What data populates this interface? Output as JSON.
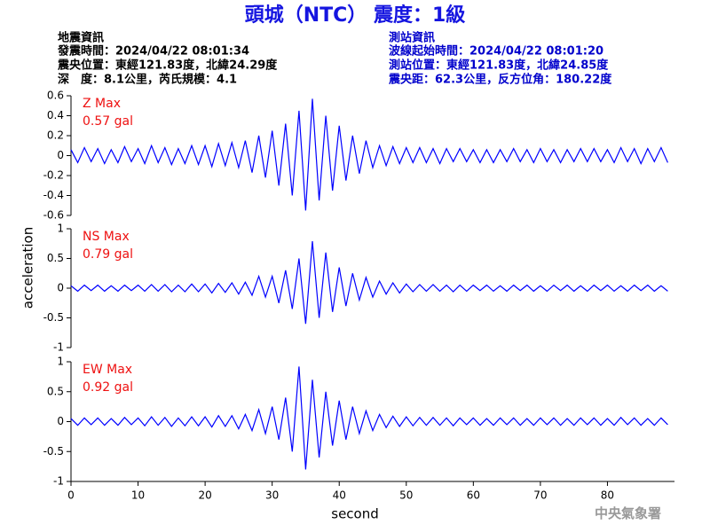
{
  "header": {
    "title": "頭城（NTC） 震度：1級",
    "left": [
      "地震資訊",
      "發震時間：2024/04/22 08:01:34",
      "震央位置：東經121.83度，北緯24.29度",
      "深　度：8.1公里，芮氏規模：4.1"
    ],
    "right": [
      "測站資訊",
      "波線起始時間：2024/04/22 08:01:20",
      "測站位置：東經121.83度，北緯24.85度",
      "震央距：62.3公里，反方位角：180.22度"
    ],
    "ylabel": "acceleration",
    "xlabel": "second",
    "footer": "中央氣象署"
  },
  "chart_data": [
    {
      "type": "line",
      "annotation": [
        "Z Max",
        "0.57 gal"
      ],
      "color": "#0000ff",
      "xlim": [
        0,
        90
      ],
      "ylim": [
        -0.6,
        0.6
      ],
      "yticks": [
        -0.6,
        -0.4,
        -0.2,
        0,
        0.2,
        0.4,
        0.6
      ],
      "x": [
        0,
        1,
        2,
        3,
        4,
        5,
        6,
        7,
        8,
        9,
        10,
        11,
        12,
        13,
        14,
        15,
        16,
        17,
        18,
        19,
        20,
        21,
        22,
        23,
        24,
        25,
        26,
        27,
        28,
        29,
        30,
        31,
        32,
        33,
        34,
        35,
        36,
        37,
        38,
        39,
        40,
        41,
        42,
        43,
        44,
        45,
        46,
        47,
        48,
        49,
        50,
        51,
        52,
        53,
        54,
        55,
        56,
        57,
        58,
        59,
        60,
        61,
        62,
        63,
        64,
        65,
        66,
        67,
        68,
        69,
        70,
        71,
        72,
        73,
        74,
        75,
        76,
        77,
        78,
        79,
        80,
        81,
        82,
        83,
        84,
        85,
        86,
        87,
        88,
        89
      ],
      "values": [
        0.06,
        -0.07,
        0.08,
        -0.06,
        0.07,
        -0.08,
        0.06,
        -0.07,
        0.09,
        -0.06,
        0.07,
        -0.08,
        0.1,
        -0.07,
        0.08,
        -0.09,
        0.07,
        -0.08,
        0.1,
        -0.09,
        0.1,
        -0.11,
        0.12,
        -0.1,
        0.13,
        -0.12,
        0.15,
        -0.17,
        0.2,
        -0.22,
        0.25,
        -0.3,
        0.32,
        -0.4,
        0.45,
        -0.55,
        0.57,
        -0.45,
        0.4,
        -0.35,
        0.3,
        -0.25,
        0.2,
        -0.18,
        0.15,
        -0.12,
        0.1,
        -0.1,
        0.09,
        -0.08,
        0.08,
        -0.07,
        0.08,
        -0.07,
        0.07,
        -0.08,
        0.07,
        -0.06,
        0.07,
        -0.06,
        0.06,
        -0.07,
        0.06,
        -0.07,
        0.06,
        -0.06,
        0.07,
        -0.06,
        0.06,
        -0.07,
        0.07,
        -0.06,
        0.06,
        -0.07,
        0.06,
        -0.06,
        0.07,
        -0.06,
        0.07,
        -0.06,
        0.06,
        -0.07,
        0.08,
        -0.06,
        0.07,
        -0.08,
        0.07,
        -0.06,
        0.08,
        -0.07
      ]
    },
    {
      "type": "line",
      "annotation": [
        "NS Max",
        "0.79 gal"
      ],
      "color": "#0000ff",
      "xlim": [
        0,
        90
      ],
      "ylim": [
        -1,
        1
      ],
      "yticks": [
        -1,
        -0.5,
        0,
        0.5,
        1
      ],
      "x": [
        0,
        1,
        2,
        3,
        4,
        5,
        6,
        7,
        8,
        9,
        10,
        11,
        12,
        13,
        14,
        15,
        16,
        17,
        18,
        19,
        20,
        21,
        22,
        23,
        24,
        25,
        26,
        27,
        28,
        29,
        30,
        31,
        32,
        33,
        34,
        35,
        36,
        37,
        38,
        39,
        40,
        41,
        42,
        43,
        44,
        45,
        46,
        47,
        48,
        49,
        50,
        51,
        52,
        53,
        54,
        55,
        56,
        57,
        58,
        59,
        60,
        61,
        62,
        63,
        64,
        65,
        66,
        67,
        68,
        69,
        70,
        71,
        72,
        73,
        74,
        75,
        76,
        77,
        78,
        79,
        80,
        81,
        82,
        83,
        84,
        85,
        86,
        87,
        88,
        89
      ],
      "values": [
        0.04,
        -0.05,
        0.05,
        -0.04,
        0.05,
        -0.05,
        0.04,
        -0.05,
        0.05,
        -0.04,
        0.05,
        -0.05,
        0.06,
        -0.05,
        0.06,
        -0.06,
        0.05,
        -0.06,
        0.07,
        -0.06,
        0.07,
        -0.08,
        0.08,
        -0.07,
        0.09,
        -0.1,
        0.1,
        -0.12,
        0.2,
        -0.15,
        0.2,
        -0.25,
        0.3,
        -0.35,
        0.5,
        -0.6,
        0.79,
        -0.5,
        0.6,
        -0.4,
        0.35,
        -0.3,
        0.25,
        -0.2,
        0.18,
        -0.15,
        0.12,
        -0.1,
        0.09,
        -0.08,
        0.07,
        -0.06,
        0.06,
        -0.05,
        0.06,
        -0.05,
        0.05,
        -0.06,
        0.05,
        -0.05,
        0.05,
        -0.04,
        0.05,
        -0.05,
        0.04,
        -0.05,
        0.05,
        -0.04,
        0.05,
        -0.05,
        0.04,
        -0.05,
        0.05,
        -0.04,
        0.05,
        -0.05,
        0.04,
        -0.05,
        0.05,
        -0.04,
        0.05,
        -0.05,
        0.04,
        -0.05,
        0.05,
        -0.04,
        0.05,
        -0.05,
        0.04,
        -0.05
      ]
    },
    {
      "type": "line",
      "annotation": [
        "EW Max",
        "0.92 gal"
      ],
      "color": "#0000ff",
      "xlim": [
        0,
        90
      ],
      "ylim": [
        -1,
        1
      ],
      "yticks": [
        -1,
        -0.5,
        0,
        0.5,
        1
      ],
      "xticks": [
        0,
        10,
        20,
        30,
        40,
        50,
        60,
        70,
        80
      ],
      "x": [
        0,
        1,
        2,
        3,
        4,
        5,
        6,
        7,
        8,
        9,
        10,
        11,
        12,
        13,
        14,
        15,
        16,
        17,
        18,
        19,
        20,
        21,
        22,
        23,
        24,
        25,
        26,
        27,
        28,
        29,
        30,
        31,
        32,
        33,
        34,
        35,
        36,
        37,
        38,
        39,
        40,
        41,
        42,
        43,
        44,
        45,
        46,
        47,
        48,
        49,
        50,
        51,
        52,
        53,
        54,
        55,
        56,
        57,
        58,
        59,
        60,
        61,
        62,
        63,
        64,
        65,
        66,
        67,
        68,
        69,
        70,
        71,
        72,
        73,
        74,
        75,
        76,
        77,
        78,
        79,
        80,
        81,
        82,
        83,
        84,
        85,
        86,
        87,
        88,
        89
      ],
      "values": [
        0.05,
        -0.06,
        0.06,
        -0.05,
        0.06,
        -0.06,
        0.05,
        -0.06,
        0.07,
        -0.05,
        0.06,
        -0.07,
        0.08,
        -0.06,
        0.07,
        -0.08,
        0.06,
        -0.07,
        0.08,
        -0.07,
        0.08,
        -0.09,
        0.1,
        -0.08,
        0.1,
        -0.12,
        0.12,
        -0.15,
        0.2,
        -0.2,
        0.25,
        -0.3,
        0.4,
        -0.5,
        0.92,
        -0.8,
        0.7,
        -0.6,
        0.5,
        -0.4,
        0.35,
        -0.3,
        0.25,
        -0.2,
        0.18,
        -0.15,
        0.12,
        -0.1,
        0.09,
        -0.08,
        0.08,
        -0.07,
        0.07,
        -0.06,
        0.07,
        -0.06,
        0.06,
        -0.07,
        0.06,
        -0.05,
        0.06,
        -0.06,
        0.05,
        -0.06,
        0.06,
        -0.05,
        0.06,
        -0.06,
        0.05,
        -0.06,
        0.06,
        -0.05,
        0.06,
        -0.06,
        0.05,
        -0.06,
        0.06,
        -0.05,
        0.06,
        -0.06,
        0.05,
        -0.06,
        0.07,
        -0.05,
        0.06,
        -0.06,
        0.05,
        -0.06,
        0.06,
        -0.05
      ]
    }
  ]
}
